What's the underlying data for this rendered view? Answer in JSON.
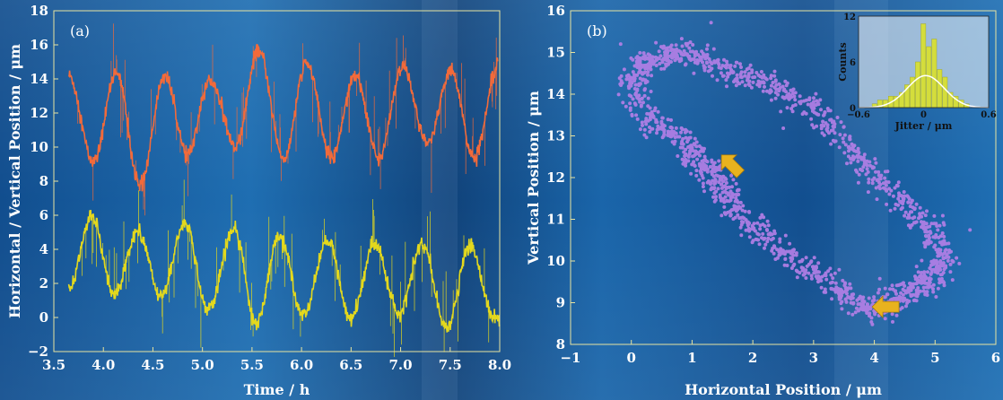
{
  "chart_data": [
    {
      "type": "line",
      "panel_label": "(a)",
      "xlabel": "Time / h",
      "ylabel": "Horizontal / Vertical Position / μm",
      "xlim": [
        3.5,
        8.0
      ],
      "ylim": [
        -2,
        18
      ],
      "xticks": [
        "3.5",
        "4.0",
        "4.5",
        "5.0",
        "5.5",
        "6.0",
        "6.5",
        "7.0",
        "7.5",
        "8.0"
      ],
      "yticks": [
        "−2",
        "0",
        "2",
        "4",
        "6",
        "8",
        "10",
        "12",
        "14",
        "16",
        "18"
      ],
      "series": [
        {
          "color": "#f26a3a",
          "x": [
            3.65,
            3.9,
            4.13,
            4.37,
            4.62,
            4.84,
            5.08,
            5.33,
            5.57,
            5.82,
            6.05,
            6.3,
            6.54,
            6.78,
            7.02,
            7.27,
            7.51,
            7.74,
            7.98
          ],
          "y": [
            14.2,
            9.1,
            14.4,
            7.8,
            14.2,
            9.6,
            13.9,
            10.1,
            15.6,
            9.3,
            14.9,
            9.4,
            14.2,
            9.4,
            14.6,
            10.2,
            14.5,
            9.3,
            14.8
          ]
        },
        {
          "color": "#e3d81d",
          "x": [
            3.65,
            3.88,
            4.11,
            4.35,
            4.58,
            4.82,
            5.06,
            5.32,
            5.54,
            5.78,
            6.02,
            6.26,
            6.5,
            6.74,
            6.98,
            7.22,
            7.46,
            7.7,
            7.94,
            8.0
          ],
          "y": [
            1.7,
            5.9,
            1.4,
            5.1,
            1.2,
            5.5,
            0.5,
            5.2,
            -0.3,
            4.8,
            0.1,
            4.5,
            -0.1,
            4.4,
            0.2,
            4.3,
            -0.6,
            4.2,
            0.1,
            -0.2
          ]
        }
      ]
    },
    {
      "type": "scatter",
      "panel_label": "(b)",
      "xlabel": "Horizontal Position / μm",
      "ylabel": "Vertical Position / μm",
      "xlim": [
        -1,
        6
      ],
      "ylim": [
        8,
        16
      ],
      "xticks": [
        "−1",
        "0",
        "1",
        "2",
        "3",
        "4",
        "5",
        "6"
      ],
      "yticks": [
        "8",
        "9",
        "10",
        "11",
        "12",
        "13",
        "14",
        "15",
        "16"
      ],
      "marker_color": "#b67fe8",
      "trajectory": {
        "x": [
          1.0,
          1.6,
          2.3,
          3.0,
          3.6,
          4.2,
          4.8,
          5.1,
          5.0,
          4.6,
          4.2,
          3.9,
          3.4,
          2.8,
          2.2,
          1.7,
          1.4,
          1.2,
          0.9,
          0.4,
          0.0,
          0.2,
          0.6,
          1.0
        ],
        "y": [
          15.0,
          14.5,
          14.2,
          13.7,
          12.7,
          11.8,
          11.0,
          10.2,
          9.6,
          9.3,
          9.0,
          8.8,
          9.3,
          9.9,
          10.6,
          11.3,
          11.9,
          12.3,
          12.8,
          13.3,
          14.2,
          14.7,
          15.0,
          15.0
        ]
      },
      "arrows": [
        {
          "x": 1.65,
          "y": 12.3,
          "direction": "up-left"
        },
        {
          "x": 4.2,
          "y": 8.9,
          "direction": "left"
        }
      ],
      "inset": {
        "type": "bar",
        "xlabel": "Jitter / μm",
        "ylabel": "Counts",
        "xlim": [
          -0.6,
          0.6
        ],
        "ylim": [
          0,
          12
        ],
        "xticks": [
          "−0.6",
          "0",
          "0.6"
        ],
        "yticks": [
          "0",
          "6",
          "12"
        ],
        "bar_color": "#d4dd3c",
        "fit_color": "#ffffff",
        "bins": [
          -0.45,
          -0.4,
          -0.35,
          -0.3,
          -0.25,
          -0.2,
          -0.15,
          -0.1,
          -0.05,
          0.0,
          0.05,
          0.1,
          0.15,
          0.2,
          0.25,
          0.3,
          0.35,
          0.4
        ],
        "counts": [
          0.5,
          1,
          1,
          1.5,
          1.5,
          2,
          3,
          4,
          6,
          11,
          8,
          9,
          5,
          4,
          2,
          1.5,
          1,
          0.5
        ],
        "fit_mean": 0.02,
        "fit_sigma": 0.17,
        "fit_peak": 4.2
      }
    }
  ]
}
